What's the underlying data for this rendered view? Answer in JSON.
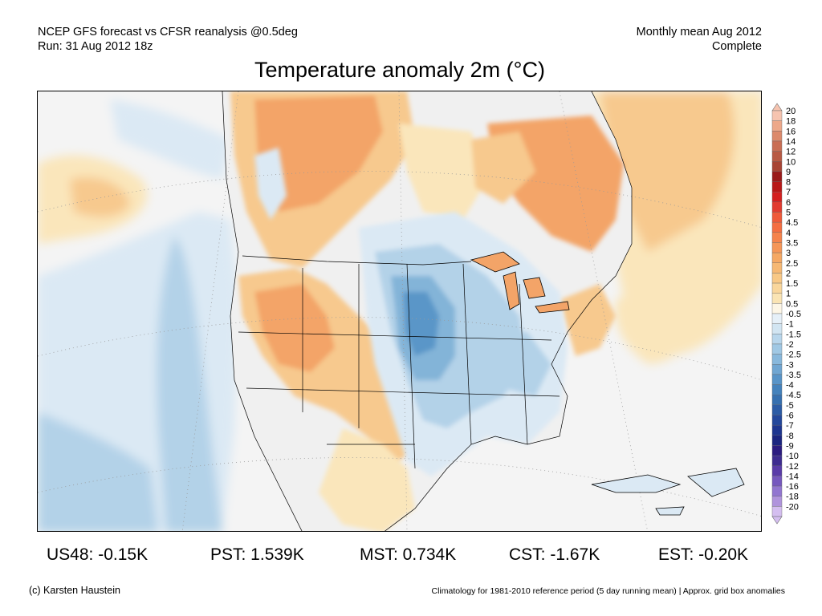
{
  "header": {
    "line1": "NCEP GFS forecast vs CFSR reanalysis @0.5deg",
    "line2": "Run: 31 Aug 2012 18z",
    "right1": "Monthly mean Aug 2012",
    "right2": "Complete"
  },
  "title": "Temperature anomaly 2m (°C)",
  "colors": {
    "ocean_base": "#f4f4f4",
    "cold_light": "#dbe9f4",
    "cold_mid": "#b3d2e8",
    "cold_deep": "#83b4d8",
    "cold_strong": "#5a96c8",
    "warm_light": "#fae6bb",
    "warm_mid": "#f7c98e",
    "warm_deep": "#f3a468",
    "warm_strong": "#ee8250"
  },
  "colorbar": {
    "labels": [
      "20",
      "18",
      "16",
      "14",
      "12",
      "10",
      "9",
      "8",
      "7",
      "6",
      "5",
      "4.5",
      "4",
      "3.5",
      "3",
      "2.5",
      "2",
      "1.5",
      "1",
      "0.5",
      "-0.5",
      "-1",
      "-1.5",
      "-2",
      "-2.5",
      "-3",
      "-3.5",
      "-4",
      "-4.5",
      "-5",
      "-6",
      "-7",
      "-8",
      "-9",
      "-10",
      "-12",
      "-14",
      "-16",
      "-18",
      "-20"
    ],
    "colors": [
      "#f6c4b0",
      "#eda88a",
      "#dc8a6c",
      "#c96e54",
      "#b85a44",
      "#a84434",
      "#9a1a1a",
      "#b81818",
      "#d42020",
      "#e23b30",
      "#ef5a3a",
      "#f46e42",
      "#f5834c",
      "#f59658",
      "#f5a864",
      "#f6b874",
      "#f8c886",
      "#f9d69c",
      "#fae4b4",
      "#fdf6e6",
      "#e6f0f8",
      "#d2e5f2",
      "#b8d6ec",
      "#a0c8e4",
      "#88b8dc",
      "#70a6d2",
      "#5894c8",
      "#4482bc",
      "#3670b0",
      "#2c5ca6",
      "#24489c",
      "#1e3690",
      "#1c2680",
      "#2c1c80",
      "#3e2c90",
      "#5a3ca8",
      "#7658be",
      "#9276d0",
      "#b094dc",
      "#d4bef0"
    ]
  },
  "stats": [
    {
      "label": "US48: -0.15K"
    },
    {
      "label": "PST: 1.539K"
    },
    {
      "label": "MST: 0.734K"
    },
    {
      "label": "CST: -1.67K"
    },
    {
      "label": "EST: -0.20K"
    }
  ],
  "footer": {
    "left": "(c) Karsten Haustein",
    "right": "Climatology for 1981-2010 reference period (5 day running mean) | Approx. grid box anomalies"
  }
}
